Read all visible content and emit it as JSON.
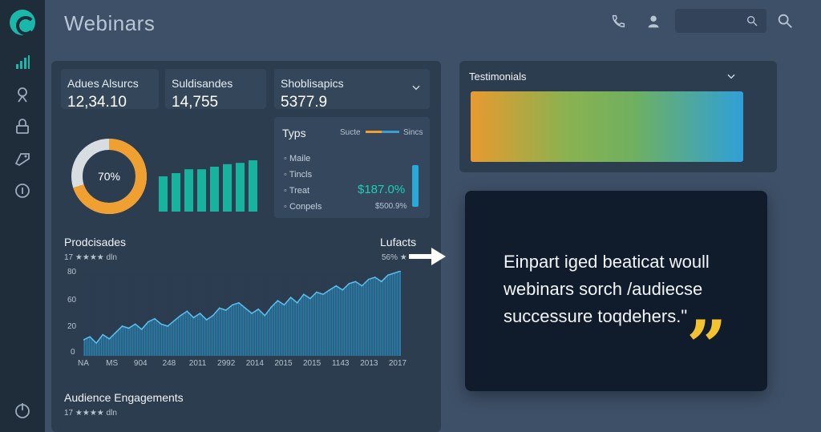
{
  "header": {
    "title": "Webinars"
  },
  "sidebar": {
    "icons": [
      "chart-icon",
      "profile-icon",
      "lock-icon",
      "tag-icon",
      "info-icon"
    ],
    "bottom_icon": "power-icon"
  },
  "stats": [
    {
      "label": "Adues Alsurcs",
      "value": "12,34.10"
    },
    {
      "label": "Suldisandes",
      "value": "14,755"
    },
    {
      "label": "Shoblisapics",
      "value": "5377.9"
    }
  ],
  "donut": {
    "label": "70%",
    "percent": 70
  },
  "mini_bars": [
    55,
    60,
    66,
    66,
    70,
    74,
    76,
    80
  ],
  "types_panel": {
    "title": "Typs",
    "legend_a": "Sucte",
    "legend_b": "Sincs",
    "items": [
      "Maile",
      "Tincls",
      "Treat",
      "Conpels"
    ],
    "big_value": "$187.0%",
    "small_value": "$500.9%"
  },
  "trend_chart": {
    "title": "Prodcisades",
    "subtitle": "17 ★★★★ dln",
    "right_title": "Lufacts",
    "right_sub": "56% ★",
    "y_ticks": [
      "80",
      "60",
      "20",
      "0"
    ],
    "x_ticks": [
      "NA",
      "MS",
      "904",
      "248",
      "2011",
      "2992",
      "2014",
      "2015",
      "2015",
      "1143",
      "2013",
      "2017"
    ]
  },
  "engagement": {
    "title": "Audience Engagements",
    "subtitle": "17 ★★★★ dln"
  },
  "testimonials": {
    "title": "Testimonials"
  },
  "quote": {
    "lines": [
      "Einpart iged beaticat woull",
      "webinars sorch /audiecse",
      "successure toqdehers.\""
    ],
    "mark": "”"
  },
  "colors": {
    "accent_teal": "#1bb7a8",
    "accent_orange": "#f0a030",
    "chart_blue": "#3a9fd0",
    "quote_yellow": "#f2c230"
  },
  "chart_data": {
    "type": "area",
    "y_range": [
      0,
      80
    ],
    "values": [
      15,
      18,
      12,
      20,
      16,
      22,
      28,
      26,
      30,
      25,
      32,
      35,
      30,
      28,
      33,
      38,
      42,
      36,
      40,
      34,
      38,
      45,
      43,
      48,
      50,
      45,
      40,
      44,
      38,
      46,
      52,
      48,
      55,
      50,
      58,
      54,
      60,
      58,
      62,
      66,
      62,
      68,
      70,
      66,
      72,
      74,
      70,
      76,
      78,
      80
    ]
  }
}
